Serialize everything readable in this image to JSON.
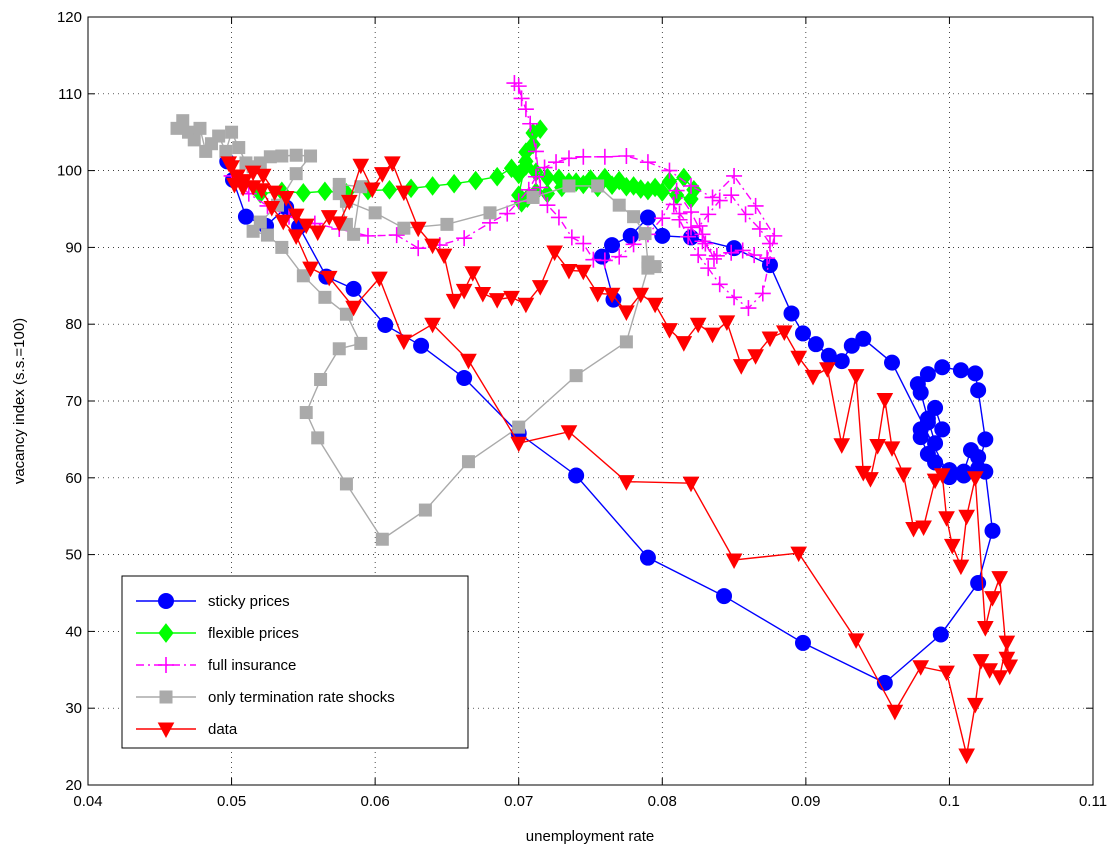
{
  "chart_data": {
    "type": "line",
    "title": "",
    "xlabel": "unemployment rate",
    "ylabel": "vacancy index (s.s.=100)",
    "xlim": [
      0.04,
      0.11
    ],
    "ylim": [
      20,
      120
    ],
    "x_ticks": [
      0.04,
      0.05,
      0.06,
      0.07,
      0.08,
      0.09,
      0.1,
      0.11
    ],
    "x_tick_labels": [
      "0.04",
      "0.05",
      "0.06",
      "0.07",
      "0.08",
      "0.09",
      "0.1",
      "0.11"
    ],
    "y_ticks": [
      20,
      30,
      40,
      50,
      60,
      70,
      80,
      90,
      100,
      110,
      120
    ],
    "y_tick_labels": [
      "20",
      "30",
      "40",
      "50",
      "60",
      "70",
      "80",
      "90",
      "100",
      "110",
      "120"
    ],
    "grid": true,
    "legend_position": "bottom-left",
    "series": [
      {
        "name": "sticky prices",
        "color": "#0000ff",
        "marker": "circle",
        "line_style": "solid",
        "x": [
          0.0497,
          0.0501,
          0.051,
          0.0524,
          0.0538,
          0.0547,
          0.0566,
          0.0585,
          0.0607,
          0.0632,
          0.0662,
          0.07,
          0.074,
          0.079,
          0.0843,
          0.0898,
          0.0955,
          0.0994,
          0.102,
          0.103,
          0.1025,
          0.102,
          0.1015,
          0.101,
          0.1,
          0.099,
          0.0985,
          0.098,
          0.098,
          0.0985,
          0.099,
          0.0995,
          0.099,
          0.0985,
          0.098,
          0.0978,
          0.0985,
          0.0995,
          0.1008,
          0.1018,
          0.102,
          0.1025,
          0.102,
          0.101,
          0.1,
          0.096,
          0.094,
          0.0932,
          0.0925,
          0.0916,
          0.0907,
          0.0898,
          0.089,
          0.0875,
          0.085,
          0.082,
          0.08,
          0.079,
          0.0778,
          0.0765,
          0.0758,
          0.0766
        ],
        "y": [
          101.2,
          98.8,
          94.0,
          92.8,
          95.2,
          92.7,
          86.2,
          84.6,
          79.9,
          77.2,
          73.0,
          65.8,
          60.3,
          49.6,
          44.6,
          38.5,
          33.3,
          39.6,
          46.3,
          53.1,
          60.8,
          62.7,
          63.6,
          60.8,
          61.0,
          62.0,
          63.1,
          65.3,
          66.3,
          67.2,
          69.1,
          66.3,
          64.5,
          67.7,
          71.1,
          72.2,
          73.5,
          74.4,
          74.0,
          73.6,
          71.4,
          65.0,
          61.2,
          60.3,
          60.1,
          75.0,
          78.1,
          77.2,
          75.2,
          75.9,
          77.4,
          78.8,
          81.4,
          87.7,
          89.9,
          91.3,
          91.5,
          93.9,
          91.5,
          90.3,
          88.8,
          83.2
        ]
      },
      {
        "name": "flexible prices",
        "color": "#00ff00",
        "marker": "diamond",
        "line_style": "solid",
        "x": [
          0.052,
          0.0535,
          0.055,
          0.0565,
          0.058,
          0.0595,
          0.061,
          0.0625,
          0.064,
          0.0655,
          0.067,
          0.0685,
          0.0695,
          0.07,
          0.0705,
          0.0712,
          0.072,
          0.0728,
          0.0735,
          0.0745,
          0.0755,
          0.0765,
          0.0775,
          0.0785,
          0.0795,
          0.0805,
          0.0815,
          0.0822,
          0.082,
          0.081,
          0.08,
          0.079,
          0.078,
          0.077,
          0.076,
          0.075,
          0.074,
          0.073,
          0.072,
          0.0712,
          0.0706,
          0.0702,
          0.07,
          0.0705,
          0.071,
          0.0715,
          0.071,
          0.0705
        ],
        "y": [
          97.0,
          97.3,
          97.1,
          97.3,
          97.1,
          97.4,
          97.5,
          97.7,
          98.0,
          98.3,
          98.7,
          99.2,
          100.3,
          99.5,
          100.6,
          99.8,
          99.1,
          99.0,
          98.5,
          98.2,
          97.8,
          98.1,
          97.9,
          97.6,
          97.8,
          98.6,
          99.1,
          97.5,
          96.3,
          96.8,
          97.2,
          97.4,
          98.0,
          98.7,
          99.1,
          98.9,
          98.5,
          97.8,
          97.0,
          97.2,
          96.4,
          95.8,
          96.8,
          101.2,
          104.9,
          105.4,
          103.4,
          102.4
        ]
      },
      {
        "name": "full insurance",
        "color": "#ff00ff",
        "marker": "plus",
        "line_style": "dashdot",
        "x": [
          0.05,
          0.0512,
          0.0525,
          0.054,
          0.0558,
          0.0575,
          0.0595,
          0.0615,
          0.063,
          0.0645,
          0.0662,
          0.068,
          0.0692,
          0.07,
          0.0707,
          0.0712,
          0.0718,
          0.0726,
          0.0735,
          0.0745,
          0.076,
          0.0775,
          0.079,
          0.0805,
          0.082,
          0.0835,
          0.085,
          0.0865,
          0.0878,
          0.087,
          0.086,
          0.085,
          0.084,
          0.0832,
          0.0825,
          0.0818,
          0.0812,
          0.0808,
          0.0812,
          0.082,
          0.0828,
          0.0838,
          0.0848,
          0.0856,
          0.0864,
          0.0873,
          0.0875,
          0.0868,
          0.0858,
          0.0848,
          0.084,
          0.0832,
          0.0826,
          0.083,
          0.0836,
          0.0828,
          0.082,
          0.081,
          0.08,
          0.079,
          0.078,
          0.077,
          0.076,
          0.0752,
          0.0745,
          0.0737,
          0.0728,
          0.072,
          0.0715,
          0.0712,
          0.0708,
          0.0705,
          0.0702,
          0.07,
          0.0697
        ],
        "y": [
          99.3,
          97.0,
          95.4,
          94.0,
          93.1,
          92.4,
          91.5,
          91.6,
          89.9,
          90.3,
          91.2,
          93.2,
          94.4,
          96.0,
          97.5,
          99.2,
          100.4,
          101.1,
          101.6,
          101.8,
          101.8,
          101.9,
          101.1,
          100.0,
          98.0,
          96.5,
          99.3,
          95.4,
          91.5,
          84.0,
          82.1,
          83.5,
          85.2,
          87.3,
          89.0,
          91.4,
          93.6,
          95.6,
          94.4,
          92.6,
          90.8,
          88.9,
          89.3,
          89.6,
          89.0,
          88.6,
          90.5,
          92.4,
          94.3,
          96.8,
          96.1,
          94.3,
          92.8,
          90.5,
          88.5,
          91.7,
          94.6,
          97.4,
          93.8,
          91.7,
          90.4,
          88.8,
          88.3,
          88.4,
          90.5,
          91.3,
          93.9,
          95.5,
          97.8,
          102.5,
          106.1,
          108.0,
          109.4,
          111.0,
          111.4
        ]
      },
      {
        "name": "only termination rate shocks",
        "color": "#aaaaaa",
        "marker": "square",
        "line_style": "solid",
        "x": [
          0.0462,
          0.0466,
          0.047,
          0.0474,
          0.0478,
          0.0482,
          0.0486,
          0.0491,
          0.0496,
          0.05,
          0.0505,
          0.051,
          0.0515,
          0.052,
          0.0527,
          0.0535,
          0.0545,
          0.0555,
          0.0545,
          0.0532,
          0.052,
          0.0515,
          0.0525,
          0.0535,
          0.055,
          0.0565,
          0.058,
          0.059,
          0.0575,
          0.0562,
          0.0552,
          0.056,
          0.058,
          0.0605,
          0.0635,
          0.0665,
          0.07,
          0.074,
          0.0775,
          0.079,
          0.0795,
          0.079,
          0.0788,
          0.078,
          0.077,
          0.0755,
          0.0735,
          0.071,
          0.068,
          0.065,
          0.062,
          0.06,
          0.058,
          0.0575,
          0.058,
          0.0585,
          0.059,
          0.0575
        ],
        "y": [
          105.5,
          106.5,
          105.0,
          104.0,
          105.5,
          102.5,
          103.5,
          104.5,
          102.5,
          105.0,
          103.0,
          101.0,
          100.5,
          101.0,
          101.8,
          101.9,
          102.0,
          101.9,
          99.6,
          95.5,
          93.3,
          92.1,
          91.6,
          90.0,
          86.3,
          83.5,
          81.3,
          77.5,
          76.8,
          72.8,
          68.5,
          65.2,
          59.2,
          52.0,
          55.8,
          62.1,
          66.6,
          73.3,
          77.7,
          87.3,
          87.5,
          88.1,
          91.8,
          94.0,
          95.5,
          98.0,
          98.0,
          96.5,
          94.5,
          93.0,
          92.5,
          94.5,
          96.0,
          97.0,
          93.0,
          91.7,
          97.9,
          98.2
        ]
      },
      {
        "name": "data",
        "color": "#ff0000",
        "marker": "triangle-down",
        "line_style": "solid",
        "x": [
          0.05,
          0.0504,
          0.0509,
          0.0515,
          0.0521,
          0.0528,
          0.0536,
          0.0545,
          0.0555,
          0.0568,
          0.0585,
          0.0603,
          0.062,
          0.064,
          0.0665,
          0.07,
          0.0735,
          0.0775,
          0.082,
          0.085,
          0.0895,
          0.0935,
          0.0962,
          0.098,
          0.0998,
          0.1012,
          0.1018,
          0.1022,
          0.1028,
          0.1035,
          0.104,
          0.1042,
          0.104,
          0.1035,
          0.103,
          0.1025,
          0.1018,
          0.1012,
          0.1008,
          0.1002,
          0.0998,
          0.0995,
          0.099,
          0.0982,
          0.0975,
          0.0968,
          0.096,
          0.0955,
          0.095,
          0.0945,
          0.094,
          0.0935,
          0.0925,
          0.0915,
          0.0905,
          0.0895,
          0.0885,
          0.0875,
          0.0865,
          0.0855,
          0.0845,
          0.0835,
          0.0825,
          0.0815,
          0.0805,
          0.0795,
          0.0785,
          0.0775,
          0.0765,
          0.0755,
          0.0745,
          0.0735,
          0.0725,
          0.0715,
          0.0705,
          0.0695,
          0.0685,
          0.0675,
          0.0668,
          0.0662,
          0.0655,
          0.0648,
          0.064,
          0.063,
          0.062,
          0.0612,
          0.0605,
          0.0598,
          0.059,
          0.0582,
          0.0575,
          0.0568,
          0.056,
          0.0552,
          0.0545,
          0.0538,
          0.053,
          0.0522,
          0.0515,
          0.0508,
          0.0502,
          0.0498
        ],
        "y": [
          100.5,
          99.3,
          98.7,
          97.9,
          97.5,
          95.2,
          93.4,
          91.5,
          87.3,
          86.1,
          82.2,
          86.0,
          77.8,
          80.0,
          75.3,
          64.5,
          66.0,
          59.5,
          59.3,
          49.3,
          50.2,
          38.9,
          29.6,
          35.4,
          34.7,
          23.9,
          30.5,
          36.2,
          35.0,
          34.1,
          38.6,
          35.5,
          36.5,
          47.0,
          44.4,
          40.5,
          60.0,
          55.0,
          48.5,
          51.2,
          54.8,
          60.4,
          59.7,
          53.6,
          53.4,
          60.5,
          63.9,
          70.2,
          64.2,
          59.9,
          60.7,
          73.3,
          64.3,
          74.2,
          73.2,
          75.7,
          79.0,
          78.2,
          75.9,
          74.6,
          80.3,
          78.7,
          80.0,
          77.6,
          79.3,
          82.6,
          83.9,
          81.6,
          83.9,
          84.0,
          86.9,
          87.0,
          89.4,
          84.9,
          82.6,
          83.5,
          83.2,
          84.0,
          86.7,
          84.4,
          83.1,
          89.0,
          90.3,
          92.5,
          97.2,
          101.0,
          99.6,
          97.6,
          100.7,
          96.0,
          93.2,
          94.0,
          92.0,
          92.9,
          94.2,
          96.5,
          97.2,
          99.4,
          99.8,
          97.8,
          98.2,
          101.0
        ]
      }
    ]
  }
}
